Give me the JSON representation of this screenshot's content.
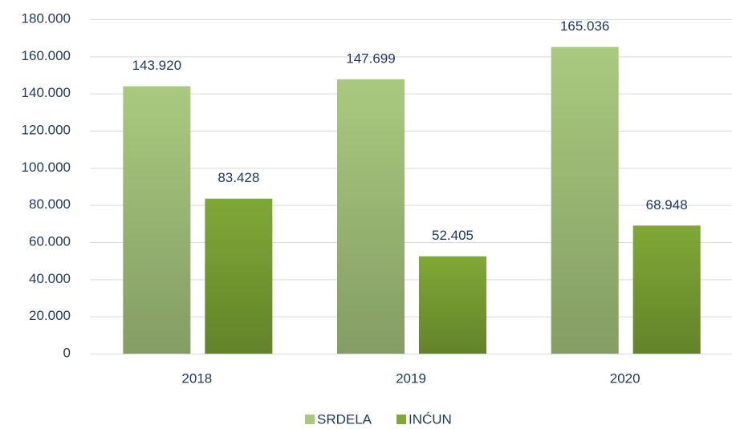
{
  "chart_data": {
    "type": "bar",
    "categories": [
      "2018",
      "2019",
      "2020"
    ],
    "series": [
      {
        "name": "SRDELA",
        "color": "#a9c97f",
        "values": [
          143920,
          147699,
          165036
        ],
        "value_labels": [
          "143.920",
          "147.699",
          "165.036"
        ]
      },
      {
        "name": "INĆUN",
        "color": "#7fa836",
        "values": [
          83428,
          52405,
          68948
        ],
        "value_labels": [
          "83.428",
          "52.405",
          "68.948"
        ]
      }
    ],
    "ylim": [
      0,
      180000
    ],
    "yticks": [
      0,
      {
        "value": 20000,
        "label": "20.000"
      },
      {
        "value": 40000,
        "label": "40.000"
      },
      {
        "value": 60000,
        "label": "60.000"
      },
      {
        "value": 80000,
        "label": "80.000"
      },
      {
        "value": 100000,
        "label": "100.000"
      },
      {
        "value": 120000,
        "label": "120.000"
      },
      {
        "value": 140000,
        "label": "140.000"
      },
      {
        "value": 160000,
        "label": "160.000"
      },
      {
        "value": 180000,
        "label": "180.000"
      }
    ],
    "grid": true,
    "legend": "bottom"
  }
}
